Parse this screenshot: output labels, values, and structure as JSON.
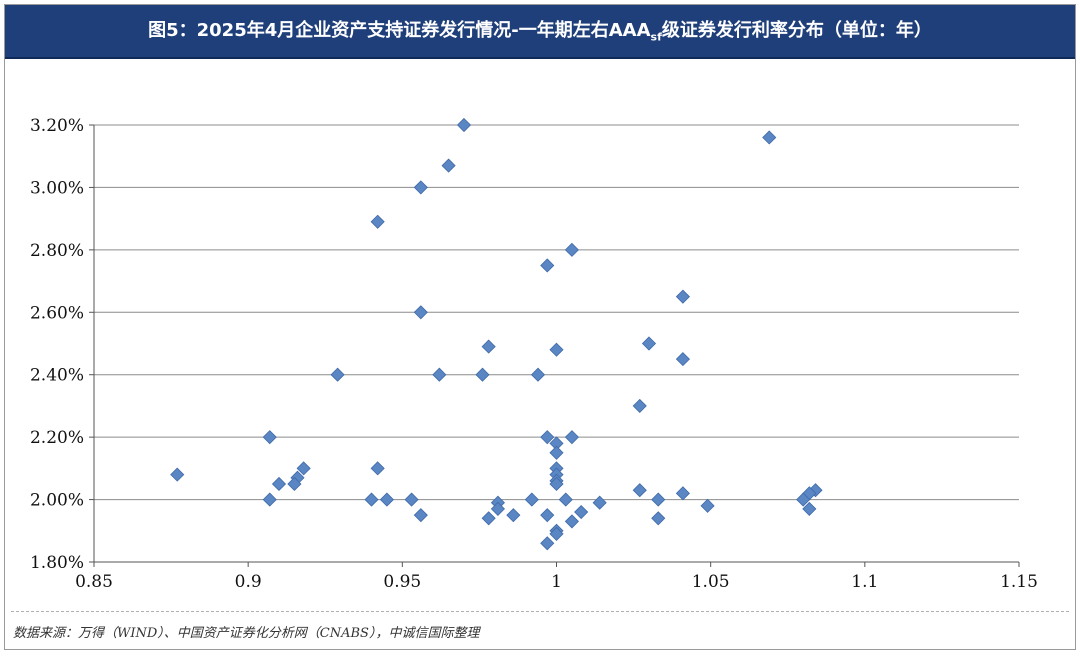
{
  "header": {
    "title_prefix": "图5：2025年4月企业资产支持证券发行情况-一年期左右AAA",
    "title_sub": "sf",
    "title_suffix": "级证券发行利率分布（单位：年）"
  },
  "source": "数据来源：万得（WIND）、中国资产证券化分析网（CNABS），中诚信国际整理",
  "chart_data": {
    "type": "scatter",
    "title": "图5：2025年4月企业资产支持证券发行情况-一年期左右AAAsf级证券发行利率分布（单位：年）",
    "xlabel": "",
    "ylabel": "",
    "xlim": [
      0.85,
      1.15
    ],
    "ylim": [
      1.8,
      3.2
    ],
    "x_ticks": [
      "0.85",
      "0.9",
      "0.95",
      "1",
      "1.05",
      "1.1",
      "1.15"
    ],
    "y_ticks": [
      "1.80%",
      "2.00%",
      "2.20%",
      "2.40%",
      "2.60%",
      "2.80%",
      "3.00%",
      "3.20%"
    ],
    "grid": "horizontal",
    "marker_color": "#5b86c4",
    "points": [
      [
        0.97,
        3.2
      ],
      [
        1.069,
        3.16
      ],
      [
        0.965,
        3.07
      ],
      [
        0.956,
        3.0
      ],
      [
        0.942,
        2.89
      ],
      [
        1.005,
        2.8
      ],
      [
        0.997,
        2.75
      ],
      [
        1.041,
        2.65
      ],
      [
        0.956,
        2.6
      ],
      [
        1.03,
        2.5
      ],
      [
        0.978,
        2.49
      ],
      [
        1.0,
        2.48
      ],
      [
        1.041,
        2.45
      ],
      [
        0.929,
        2.4
      ],
      [
        0.962,
        2.4
      ],
      [
        0.976,
        2.4
      ],
      [
        0.994,
        2.4
      ],
      [
        1.027,
        2.3
      ],
      [
        0.907,
        2.2
      ],
      [
        0.997,
        2.2
      ],
      [
        1.005,
        2.2
      ],
      [
        1.0,
        2.18
      ],
      [
        1.0,
        2.15
      ],
      [
        0.942,
        2.1
      ],
      [
        0.918,
        2.1
      ],
      [
        1.0,
        2.1
      ],
      [
        1.0,
        2.08
      ],
      [
        0.877,
        2.08
      ],
      [
        0.916,
        2.07
      ],
      [
        1.0,
        2.06
      ],
      [
        1.0,
        2.05
      ],
      [
        0.91,
        2.05
      ],
      [
        0.915,
        2.05
      ],
      [
        1.084,
        2.03
      ],
      [
        1.027,
        2.03
      ],
      [
        1.041,
        2.02
      ],
      [
        1.082,
        2.02
      ],
      [
        0.907,
        2.0
      ],
      [
        0.94,
        2.0
      ],
      [
        0.945,
        2.0
      ],
      [
        0.953,
        2.0
      ],
      [
        0.992,
        2.0
      ],
      [
        1.003,
        2.0
      ],
      [
        1.033,
        2.0
      ],
      [
        1.08,
        2.0
      ],
      [
        0.981,
        1.99
      ],
      [
        1.014,
        1.99
      ],
      [
        1.049,
        1.98
      ],
      [
        0.981,
        1.97
      ],
      [
        1.082,
        1.97
      ],
      [
        1.008,
        1.96
      ],
      [
        0.956,
        1.95
      ],
      [
        0.986,
        1.95
      ],
      [
        0.997,
        1.95
      ],
      [
        0.978,
        1.94
      ],
      [
        1.033,
        1.94
      ],
      [
        1.005,
        1.93
      ],
      [
        1.0,
        1.9
      ],
      [
        1.0,
        1.89
      ],
      [
        0.997,
        1.86
      ]
    ]
  }
}
